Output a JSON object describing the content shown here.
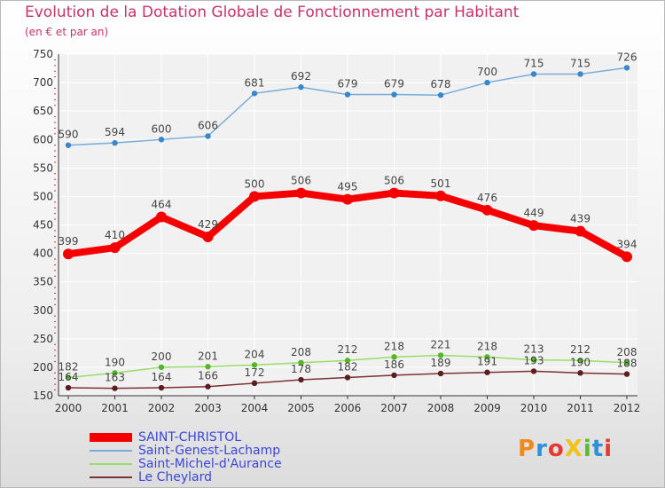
{
  "title": "Evolution de la Dotation Globale de Fonctionnement par Habitant",
  "subtitle": "(en € et par an)",
  "logo": {
    "text": "ProXiti",
    "letters": [
      {
        "ch": "P",
        "color": "#f08a1c"
      },
      {
        "ch": "r",
        "color": "#2f8fd8"
      },
      {
        "ch": "o",
        "color": "#e53a2f"
      },
      {
        "ch": "X",
        "color": "#f2c21b"
      },
      {
        "ch": "i",
        "color": "#5fb92f"
      },
      {
        "ch": "t",
        "color": "#2f8fd8"
      },
      {
        "ch": "i",
        "color": "#e53a2f"
      }
    ]
  },
  "chart_data": {
    "type": "line",
    "x": [
      "2000",
      "2001",
      "2002",
      "2003",
      "2004",
      "2005",
      "2006",
      "2007",
      "2008",
      "2009",
      "2010",
      "2011",
      "2012"
    ],
    "ylim": [
      150,
      750
    ],
    "yticks": [
      150,
      200,
      250,
      300,
      350,
      400,
      450,
      500,
      550,
      600,
      650,
      700,
      750
    ],
    "grid": true,
    "legend_position": "bottom-left",
    "series": [
      {
        "name": "SAINT-CHRISTOL",
        "color": "#f50000",
        "values": [
          399,
          410,
          464,
          429,
          500,
          506,
          495,
          506,
          501,
          476,
          449,
          439,
          394
        ]
      },
      {
        "name": "Saint-Genest-Lachamp",
        "color": "#7aaed9",
        "values": [
          590,
          594,
          600,
          606,
          681,
          692,
          679,
          679,
          678,
          700,
          715,
          715,
          726
        ]
      },
      {
        "name": "Saint-Michel-d'Aurance",
        "color": "#99dd66",
        "values": [
          182,
          190,
          200,
          201,
          204,
          208,
          212,
          218,
          221,
          218,
          213,
          212,
          208
        ]
      },
      {
        "name": "Le Cheylard",
        "color": "#7a3232",
        "values": [
          164,
          163,
          164,
          166,
          172,
          178,
          182,
          186,
          189,
          191,
          193,
          190,
          188
        ]
      }
    ]
  }
}
